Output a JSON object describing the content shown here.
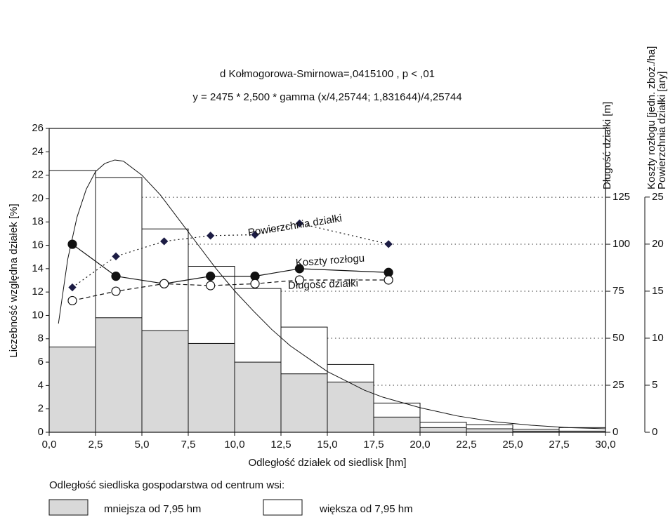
{
  "chart_data": {
    "type": "histogram",
    "title": "d Kołmogorowa-Smirnowa=,0415100 , p < ,01",
    "subtitle": "y = 2475 * 2,500 * gamma (x/4,25744; 1,831644)/4,25744",
    "x_label": "Odległość działek od siedlisk [hm]",
    "y_label": "Liczebność względna działek [%]",
    "y2_labels": [
      "Długość działki [m]",
      "Koszty rozłogu [jedn. zboż./ha]"
    ],
    "y3_label": "Powierzchnia działki [ary]",
    "bins": [
      0,
      2.5,
      5,
      7.5,
      10,
      12.5,
      15,
      17.5,
      20,
      22.5,
      25,
      27.5,
      30
    ],
    "series": [
      {
        "name": "większa od 7,95 hm",
        "color": "#ffffff",
        "values": [
          22.4,
          21.8,
          17.4,
          14.2,
          12.3,
          9.0,
          5.8,
          2.5,
          0.85,
          0.65,
          0.25,
          0.4
        ]
      },
      {
        "name": "mniejsza od 7,95 hm",
        "color": "#d9d9d9",
        "values": [
          7.3,
          9.8,
          8.7,
          7.6,
          6.0,
          5.0,
          4.3,
          1.3,
          0.4,
          0.3,
          0.1,
          0.1
        ]
      }
    ],
    "legend_title": "Odległość siedliska gospodarstwa od centrum wsi:",
    "fit_curve": {
      "x": [
        0.5,
        1,
        1.5,
        2,
        2.5,
        3,
        3.54,
        4,
        5,
        6,
        7,
        8,
        9,
        10,
        11,
        12,
        13,
        14,
        15,
        16,
        17,
        18,
        20,
        22,
        24,
        26,
        28,
        30
      ],
      "values": [
        9.3,
        14.8,
        18.4,
        20.8,
        22.3,
        23.0,
        23.3,
        23.2,
        22.0,
        20.3,
        18.2,
        16.1,
        14.0,
        12.1,
        10.4,
        8.8,
        7.4,
        6.3,
        5.2,
        4.4,
        3.6,
        3.0,
        2.1,
        1.4,
        0.9,
        0.6,
        0.4,
        0.3
      ]
    },
    "lines": [
      {
        "name": "Powierzchnia działki",
        "axis": "y3",
        "style": "dotted",
        "marker": "diamond",
        "x": [
          1.25,
          3.6,
          6.2,
          8.7,
          11.1,
          13.5,
          18.3
        ],
        "values": [
          15.4,
          18.7,
          20.3,
          20.9,
          21.0,
          22.2,
          20.0
        ]
      },
      {
        "name": "Koszty rozłogu",
        "axis": "y2",
        "style": "solid",
        "marker": "filled",
        "x": [
          1.25,
          3.6,
          6.2,
          8.7,
          11.1,
          13.5,
          18.3
        ],
        "values": [
          100,
          83,
          79,
          83,
          83,
          87,
          85
        ]
      },
      {
        "name": "Długość działki",
        "axis": "y2",
        "style": "dashed",
        "marker": "open",
        "x": [
          1.25,
          3.6,
          6.2,
          8.7,
          11.1,
          13.5,
          18.3
        ],
        "values": [
          70,
          75,
          79,
          78,
          79,
          81,
          81
        ]
      }
    ],
    "xlim": [
      0,
      30
    ],
    "xticks": [
      {
        "value": 0,
        "label": "0,0"
      },
      {
        "value": 2.5,
        "label": "2,5"
      },
      {
        "value": 5,
        "label": "5,0"
      },
      {
        "value": 7.5,
        "label": "7,5"
      },
      {
        "value": 10,
        "label": "10,0"
      },
      {
        "value": 12.5,
        "label": "12,5"
      },
      {
        "value": 15,
        "label": "15,0"
      },
      {
        "value": 17.5,
        "label": "17,5"
      },
      {
        "value": 20,
        "label": "20,0"
      },
      {
        "value": 22.5,
        "label": "22,5"
      },
      {
        "value": 25,
        "label": "25,0"
      },
      {
        "value": 27.5,
        "label": "27,5"
      },
      {
        "value": 30,
        "label": "30,0"
      }
    ],
    "ylim": [
      0,
      26
    ],
    "yticks": [
      0,
      2,
      4,
      6,
      8,
      10,
      12,
      14,
      16,
      18,
      20,
      22,
      24,
      26
    ],
    "y2lim": [
      0,
      161.6
    ],
    "y2ticks": [
      0,
      25,
      50,
      75,
      100,
      125
    ],
    "y3lim": [
      0,
      32.3
    ],
    "y3ticks": [
      0,
      5,
      10,
      15,
      20,
      25
    ],
    "grid": "y2"
  }
}
